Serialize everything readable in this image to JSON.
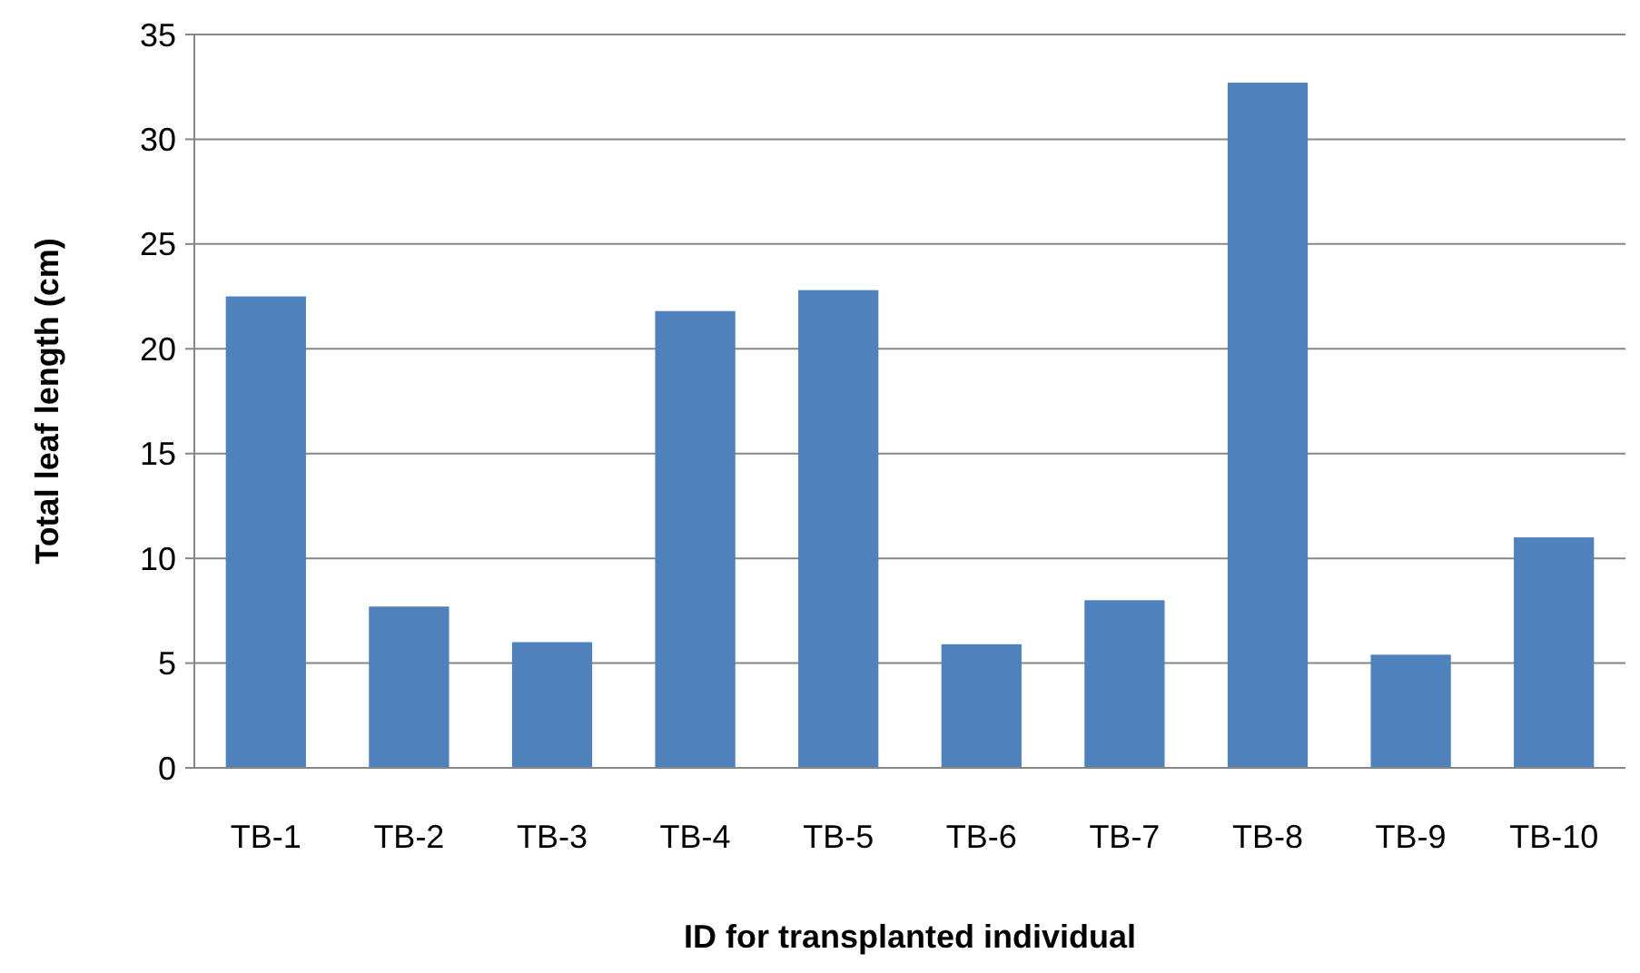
{
  "chart_data": {
    "type": "bar",
    "xlabel": "ID for transplanted individual",
    "ylabel": "Total leaf length (cm)",
    "categories": [
      "TB-1",
      "TB-2",
      "TB-3",
      "TB-4",
      "TB-5",
      "TB-6",
      "TB-7",
      "TB-8",
      "TB-9",
      "TB-10"
    ],
    "values": [
      22.5,
      7.7,
      6.0,
      21.8,
      22.8,
      5.9,
      8.0,
      32.7,
      5.4,
      11.0
    ],
    "color": "#4f81bd",
    "ylim": [
      0,
      35
    ],
    "yticks": [
      0,
      5,
      10,
      15,
      20,
      25,
      30,
      35
    ],
    "grid": "y"
  }
}
